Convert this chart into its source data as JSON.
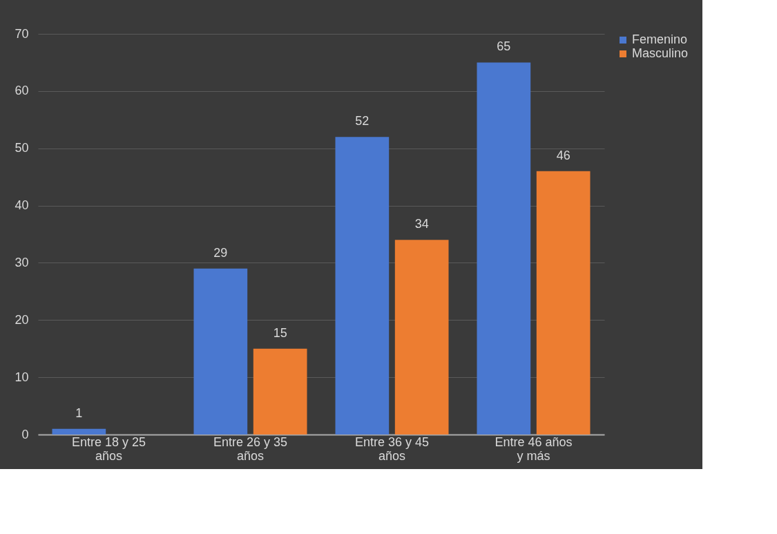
{
  "chart_data": {
    "type": "bar",
    "categories": [
      "Entre 18 y 25 años",
      "Entre 26 y 35 años",
      "Entre 36 y 45 años",
      "Entre 46 años y más"
    ],
    "series": [
      {
        "name": "Femenino",
        "color": "#4a78d0",
        "values": [
          1,
          29,
          52,
          65
        ]
      },
      {
        "name": "Masculino",
        "color": "#ed7d31",
        "values": [
          null,
          15,
          34,
          46
        ]
      }
    ],
    "ylim": [
      0,
      70
    ],
    "yticks": [
      0,
      10,
      20,
      30,
      40,
      50,
      60,
      70
    ],
    "grid": "y",
    "legend": "right",
    "data_labels": true
  }
}
